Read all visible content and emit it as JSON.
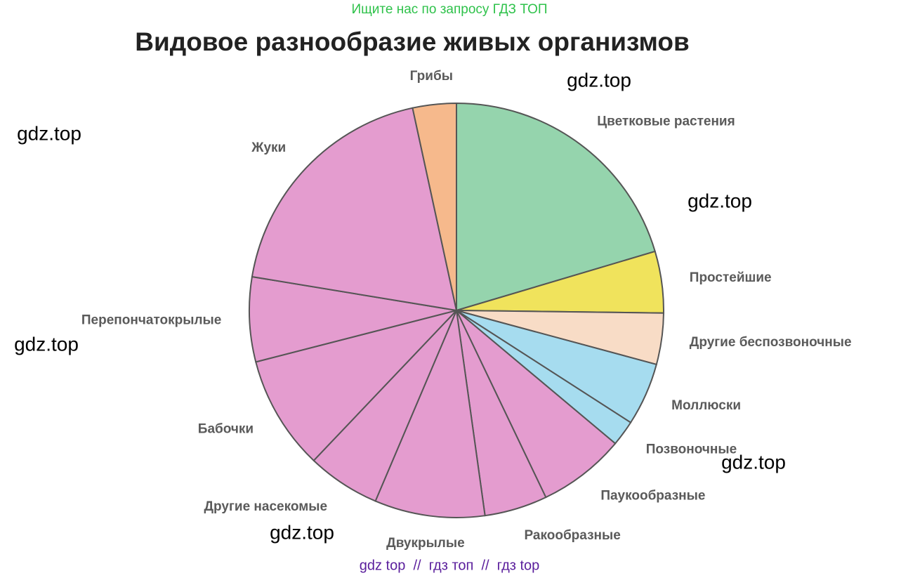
{
  "header_note": "Ищите нас по запросу ГДЗ ТОП",
  "watermarks": [
    "gdz.top",
    "gdz.top",
    "gdz.top",
    "gdz.top",
    "gdz.top",
    "gdz.top"
  ],
  "footer": "gdz top  //  гдз топ  //  гдз top",
  "chart_data": {
    "type": "pie",
    "title": "Видовое разнообразие живых организмов",
    "categories": [
      "Цветковые растения",
      "Простейшие",
      "Другие беспозвоночные",
      "Моллюски",
      "Позвоночные",
      "Паукообразные",
      "Ракообразные",
      "Двукрылые",
      "Другие насекомые",
      "Бабочки",
      "Перепончатокрылые",
      "Жуки",
      "Грибы"
    ],
    "values": [
      20.4,
      4.8,
      4,
      4.9,
      2,
      6.8,
      4.9,
      8.6,
      5.7,
      8.9,
      6.6,
      19,
      3.4
    ],
    "colors": [
      "#95d4ad",
      "#f0e35c",
      "#f8dcc6",
      "#a6dcef",
      "#a6dcef",
      "#e49ccf",
      "#e49ccf",
      "#e49ccf",
      "#e49ccf",
      "#e49ccf",
      "#e49ccf",
      "#e49ccf",
      "#f6b98c"
    ]
  }
}
